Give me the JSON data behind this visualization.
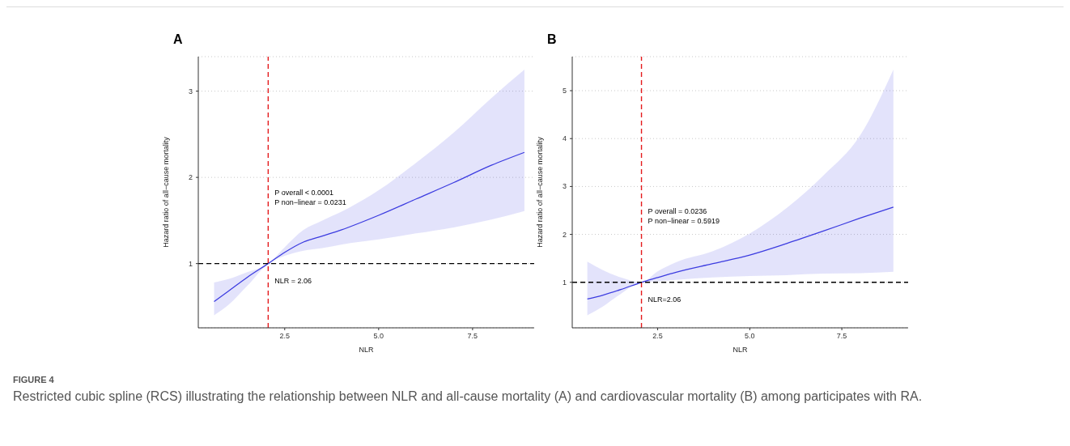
{
  "chart_data": [
    {
      "type": "line",
      "title": "A",
      "xlabel": "NLR",
      "ylabel": "Hazard ratio of all−cause mortality",
      "x": [
        0.62,
        1.0,
        1.5,
        2.06,
        2.5,
        3.0,
        3.5,
        4.0,
        5.0,
        6.0,
        7.0,
        8.0,
        8.88
      ],
      "series": [
        {
          "color": "#3c3ce0",
          "values": [
            0.56,
            0.68,
            0.84,
            1,
            1.13,
            1.25,
            1.32,
            1.39,
            1.56,
            1.75,
            1.94,
            2.14,
            2.29
          ],
          "lower": [
            0.4,
            0.52,
            0.74,
            1,
            1.09,
            1.15,
            1.18,
            1.22,
            1.28,
            1.35,
            1.42,
            1.51,
            1.61
          ],
          "upper": [
            0.78,
            0.82,
            0.9,
            1,
            1.19,
            1.39,
            1.5,
            1.6,
            1.85,
            2.17,
            2.52,
            2.92,
            3.25
          ]
        }
      ],
      "xlim": [
        0.2,
        9.14
      ],
      "ylim": [
        0.255,
        3.4
      ],
      "xticks": [
        {
          "value": 2.5,
          "label": "2.5"
        },
        {
          "value": 5,
          "label": "5.0"
        },
        {
          "value": 7.5,
          "label": "7.5"
        }
      ],
      "yticks": [
        1,
        2,
        3
      ],
      "grid": "y",
      "line_style": "solid",
      "marker": "none",
      "ref_lines": [
        {
          "axis": "x",
          "value": 2.06,
          "label": "NLR = 2.06",
          "color": "#e41a1c",
          "line_style": "dashed"
        },
        {
          "axis": "y",
          "value": 1,
          "color": "#000000",
          "line_style": "dashed"
        }
      ],
      "annotations": [
        "P overall < 0.0001",
        "P non−linear = 0.0231",
        "FIGURE 4",
        "Restricted cubic spline (RCS) illustrating the relationship between NLR and all-cause mortality (A) and cardiovascular mortality (B) among participates with RA."
      ]
    },
    {
      "type": "line",
      "title": "B",
      "xlabel": "NLR",
      "ylabel": "Hazard ratio of all−cause mortality",
      "x": [
        0.59,
        1.0,
        1.5,
        2.06,
        2.5,
        3.0,
        4.0,
        5.0,
        6.0,
        7.0,
        8.0,
        8.9
      ],
      "series": [
        {
          "color": "#3c3ce0",
          "values": [
            0.65,
            0.73,
            0.85,
            1,
            1.1,
            1.21,
            1.39,
            1.57,
            1.81,
            2.07,
            2.34,
            2.57
          ],
          "lower": [
            0.31,
            0.49,
            0.76,
            1,
            1.02,
            1.05,
            1.1,
            1.13,
            1.15,
            1.18,
            1.19,
            1.22
          ],
          "upper": [
            1.43,
            1.26,
            1.1,
            1,
            1.23,
            1.42,
            1.65,
            2.02,
            2.55,
            3.23,
            4.07,
            5.44
          ]
        }
      ],
      "xlim": [
        0.18,
        9.3
      ],
      "ylim": [
        0.05,
        5.71
      ],
      "xticks": [
        {
          "value": 2.5,
          "label": "2.5"
        },
        {
          "value": 5,
          "label": "5.0"
        },
        {
          "value": 7.5,
          "label": "7.5"
        }
      ],
      "yticks": [
        1,
        2,
        3,
        4,
        5
      ],
      "grid": "y",
      "line_style": "solid",
      "marker": "none",
      "ref_lines": [
        {
          "axis": "x",
          "value": 2.06,
          "label": "NLR=2.06",
          "color": "#e41a1c",
          "line_style": "dashed"
        },
        {
          "axis": "y",
          "value": 1,
          "color": "#000000",
          "line_style": "dashed"
        }
      ],
      "annotations": [
        "P overall = 0.0236",
        "P non−linear = 0.5919"
      ]
    }
  ]
}
